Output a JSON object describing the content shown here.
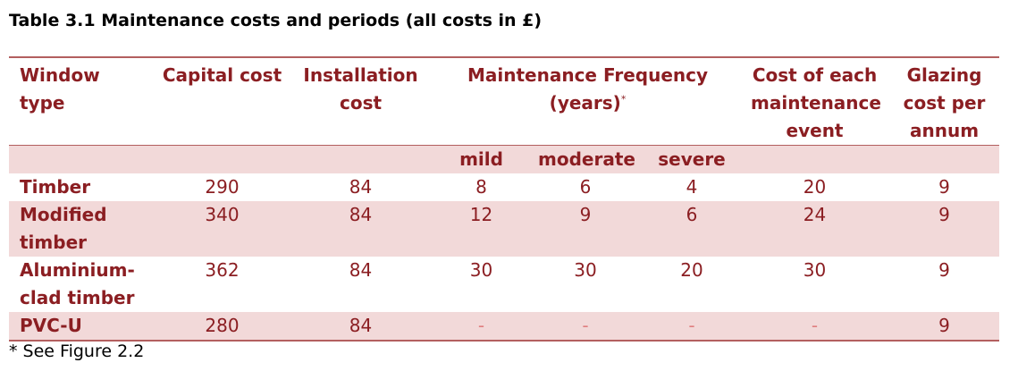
{
  "caption": "Table 3.1 Maintenance costs and periods (all costs in £)",
  "headers": {
    "window_type": "Window type",
    "capital_cost": "Capital cost",
    "installation_cost": "Installation cost",
    "maintenance_frequency": "Maintenance Frequency (years)",
    "maintenance_frequency_mark": "*",
    "cost_each_event": "Cost of each maintenance event",
    "glazing_cost": "Glazing cost per annum"
  },
  "subheaders": [
    "mild",
    "moderate",
    "severe"
  ],
  "rows": [
    {
      "type": "Timber",
      "capital": "290",
      "installation": "84",
      "mild": "8",
      "moderate": "6",
      "severe": "4",
      "event_cost": "20",
      "glazing": "9"
    },
    {
      "type": "Modified timber",
      "capital": "340",
      "installation": "84",
      "mild": "12",
      "moderate": "9",
      "severe": "6",
      "event_cost": "24",
      "glazing": "9"
    },
    {
      "type": "Aluminium-clad timber",
      "capital": "362",
      "installation": "84",
      "mild": "30",
      "moderate": "30",
      "severe": "20",
      "event_cost": "30",
      "glazing": "9"
    },
    {
      "type": "PVC-U",
      "capital": "280",
      "installation": "84",
      "mild": "-",
      "moderate": "-",
      "severe": "-",
      "event_cost": "-",
      "glazing": "9"
    }
  ],
  "footnote": "* See Figure 2.2"
}
